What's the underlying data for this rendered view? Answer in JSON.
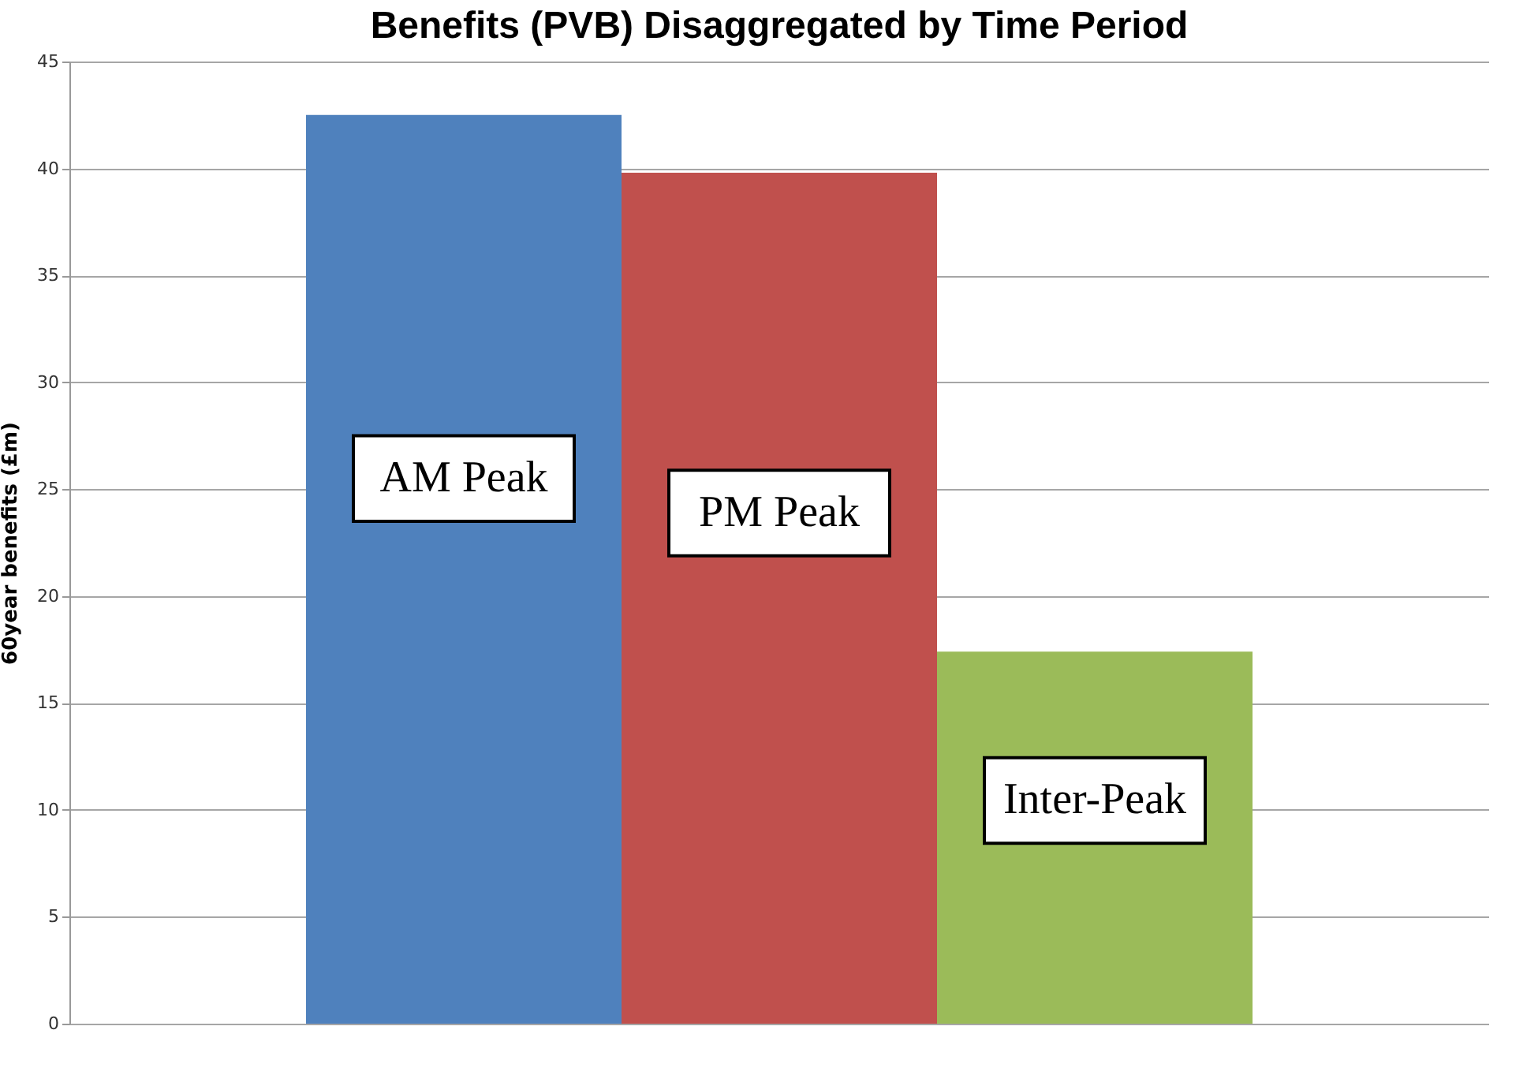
{
  "chart_data": {
    "type": "bar",
    "title": "Benefits (PVB) Disaggregated by Time Period",
    "ylabel": "60year benefits (£m)",
    "categories": [
      "AM Peak",
      "PM Peak",
      "Inter-Peak"
    ],
    "values": [
      42.5,
      39.8,
      17.4
    ],
    "colors": [
      "#4f81bd",
      "#c0504d",
      "#9bbb59"
    ],
    "ylim": [
      0,
      45
    ],
    "yticks": [
      0,
      5,
      10,
      15,
      20,
      25,
      30,
      35,
      40,
      45
    ],
    "grid": "y",
    "legend": false
  }
}
